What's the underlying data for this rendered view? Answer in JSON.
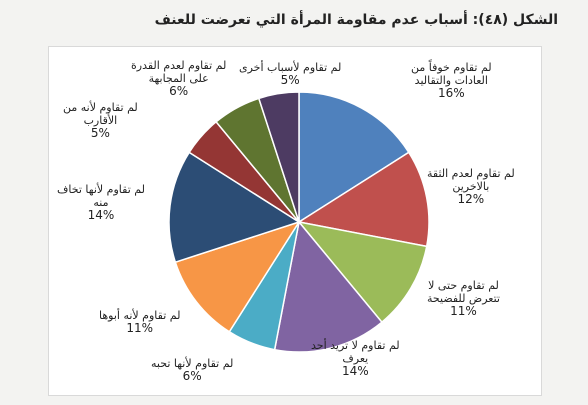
{
  "title": "الشكل (٤٨): أسباب عدم مقاومة المرأة التي تعرضت للعنف",
  "chart_data": {
    "type": "pie",
    "title": "الشكل (٤٨): أسباب عدم مقاومة المرأة التي تعرضت للعنف",
    "slices": [
      {
        "label": "لم تقاوم خوفاً من العادات والتقاليد",
        "value": 16,
        "display": "16%",
        "color": "#4f81bd"
      },
      {
        "label": "لم تقاوم لعدم الثقة بالاخرين",
        "value": 12,
        "display": "12%",
        "color": "#c0504d"
      },
      {
        "label": "لم تقاوم حتى لا تتعرض للفضيحة",
        "value": 11,
        "display": "11%",
        "color": "#9bbb59"
      },
      {
        "label": "لم تقاوم لا تريد أحد يعرف",
        "value": 14,
        "display": "14%",
        "color": "#8064a2"
      },
      {
        "label": "لم تقاوم لأنها تحبه",
        "value": 6,
        "display": "6%",
        "color": "#4bacc6"
      },
      {
        "label": "لم تقاوم لأنه أبوها",
        "value": 11,
        "display": "11%",
        "color": "#f79646"
      },
      {
        "label": "لم تقاوم لأنها تخاف منه",
        "value": 14,
        "display": "14%",
        "color": "#2c4d75"
      },
      {
        "label": "لم تقاوم لأنه من الأقارب",
        "value": 5,
        "display": "5%",
        "color": "#943634"
      },
      {
        "label": "لم تقاوم لعدم القدرة على المجابهة",
        "value": 6,
        "display": "6%",
        "color": "#5f7530"
      },
      {
        "label": "لم تقاوم لأسباب أخرى",
        "value": 5,
        "display": "5%",
        "color": "#4d3b62"
      }
    ]
  },
  "labels": {
    "l0": {
      "line1": "لم تقاوم خوفاً من",
      "line2": "العادات والتقاليد"
    },
    "l1": {
      "line1": "لم تقاوم لعدم الثقة",
      "line2": "بالاخرين"
    },
    "l2": {
      "line1": "لم تقاوم حتى لا",
      "line2": "تتعرض للفضيحة"
    },
    "l3": {
      "line1": "لم تقاوم لا تريد أحد",
      "line2": "يعرف"
    },
    "l4": {
      "line1": "لم تقاوم لأنها تحبه",
      "line2": ""
    },
    "l5": {
      "line1": "لم تقاوم لأنه أبوها",
      "line2": ""
    },
    "l6": {
      "line1": "لم تقاوم لأنها تخاف",
      "line2": "منه"
    },
    "l7": {
      "line1": "لم تقاوم لأنه من",
      "line2": "الأقارب"
    },
    "l8": {
      "line1": "لم تقاوم لعدم القدرة",
      "line2": "على المجابهة"
    },
    "l9": {
      "line1": "لم تقاوم لأسباب أخرى",
      "line2": ""
    }
  }
}
